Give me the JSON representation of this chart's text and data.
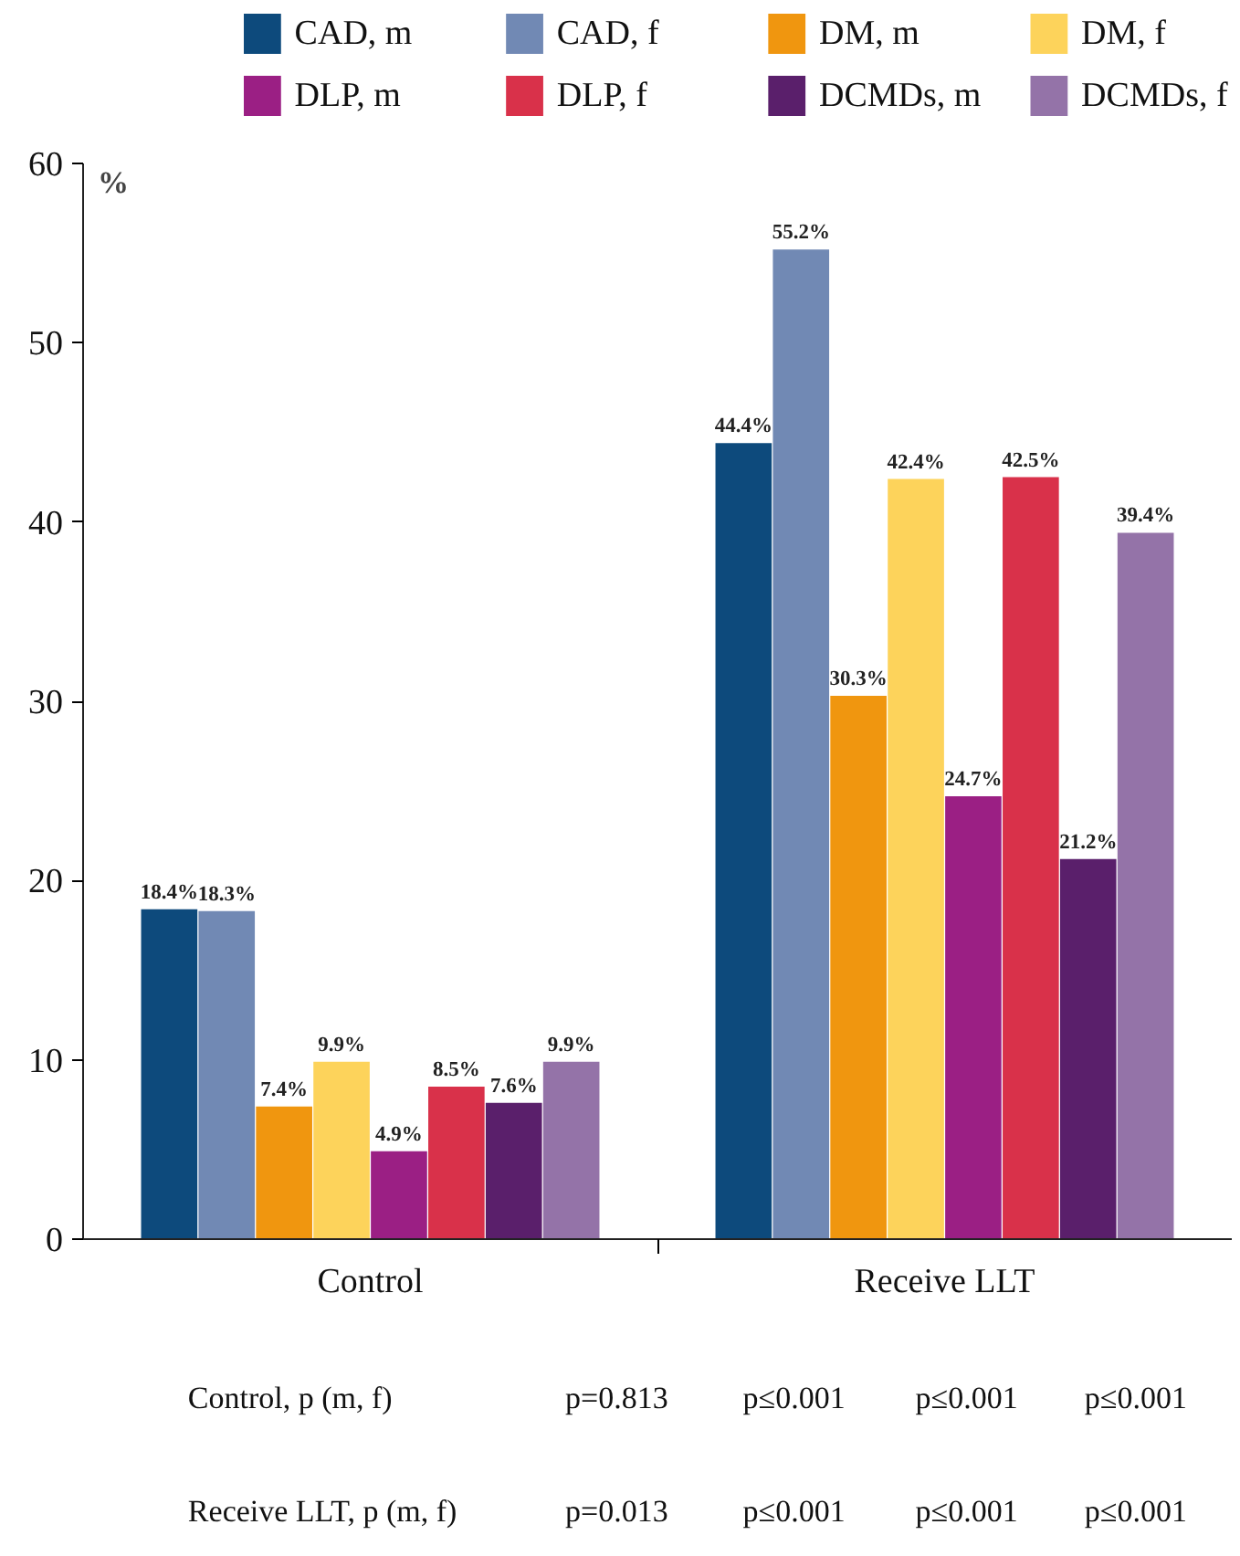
{
  "chart_data": {
    "type": "bar",
    "categories": [
      "Control",
      "Receive LLT"
    ],
    "ylabel": "%",
    "ylim": [
      0,
      60
    ],
    "yticks": [
      0,
      10,
      20,
      30,
      40,
      50,
      60
    ],
    "grid": false,
    "legend": "top",
    "series": [
      {
        "name": "CAD, m",
        "color": "#0d4a7c",
        "values": [
          18.4,
          44.4
        ],
        "value_labels": [
          "18.4%",
          "44.4%"
        ]
      },
      {
        "name": "CAD, f",
        "color": "#7189b4",
        "values": [
          18.3,
          55.2
        ],
        "value_labels": [
          "18.3%",
          "55.2%"
        ]
      },
      {
        "name": "DM, m",
        "color": "#f0960f",
        "values": [
          7.4,
          30.3
        ],
        "value_labels": [
          "7.4%",
          "30.3%"
        ]
      },
      {
        "name": "DM, f",
        "color": "#fdd35b",
        "values": [
          9.9,
          42.4
        ],
        "value_labels": [
          "9.9%",
          "42.4%"
        ]
      },
      {
        "name": "DLP, m",
        "color": "#9b1f84",
        "values": [
          4.9,
          24.7
        ],
        "value_labels": [
          "4.9%",
          "24.7%"
        ]
      },
      {
        "name": "DLP, f",
        "color": "#d9314a",
        "values": [
          8.5,
          42.5
        ],
        "value_labels": [
          "8.5%",
          "42.5%"
        ]
      },
      {
        "name": "DCMDs, m",
        "color": "#5a1f6b",
        "values": [
          7.6,
          21.2
        ],
        "value_labels": [
          "7.6%",
          "21.2%"
        ]
      },
      {
        "name": "DCMDs, f",
        "color": "#9473a8",
        "values": [
          9.9,
          39.4
        ],
        "value_labels": [
          "9.9%",
          "39.4%"
        ]
      }
    ],
    "annotations": [
      "Control, p (m, f)",
      "p=0.813",
      "p≤0.001",
      "p≤0.001",
      "p≤0.001",
      "Receive LLT, p (m, f)",
      "p=0.013",
      "p≤0.001",
      "p≤0.001",
      "p≤0.001"
    ]
  }
}
